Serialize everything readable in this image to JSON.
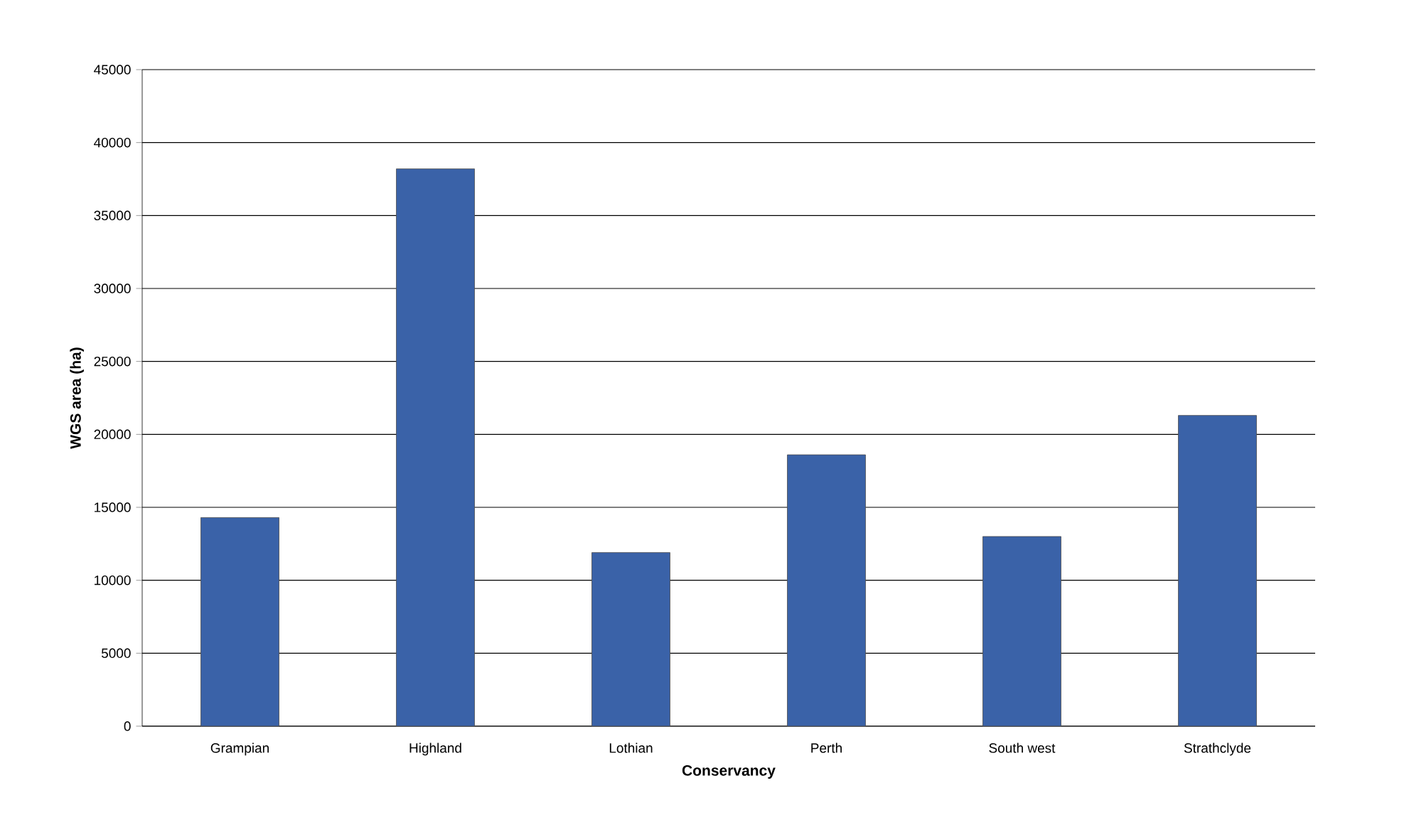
{
  "chart_data": {
    "type": "bar",
    "xlabel": "Conservancy",
    "ylabel": "WGS area (ha)",
    "categories": [
      "Grampian",
      "Highland",
      "Lothian",
      "Perth",
      "South west",
      "Strathclyde"
    ],
    "values": [
      14300,
      38200,
      11900,
      18600,
      13000,
      21300
    ],
    "color": "#3a62a8",
    "ylim": [
      0,
      45000
    ],
    "yticks": [
      0,
      5000,
      10000,
      15000,
      20000,
      25000,
      30000,
      35000,
      40000,
      45000
    ],
    "grid": "y"
  }
}
